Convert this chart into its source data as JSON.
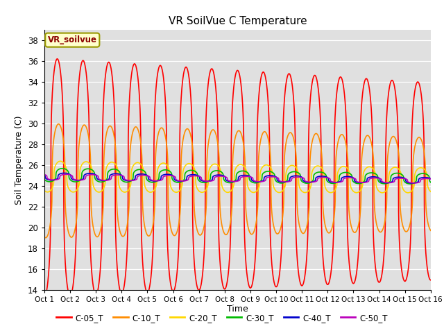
{
  "title": "VR SoilVue C Temperature",
  "xlabel": "Time",
  "ylabel": "Soil Temperature (C)",
  "xlim": [
    0,
    15
  ],
  "ylim": [
    14,
    39
  ],
  "yticks": [
    14,
    16,
    18,
    20,
    22,
    24,
    26,
    28,
    30,
    32,
    34,
    36,
    38
  ],
  "xtick_labels": [
    "Oct 1",
    "Oct 2",
    "Oct 3",
    "Oct 4",
    "Oct 5",
    "Oct 6",
    "Oct 7",
    "Oct 8",
    "Oct 9",
    "Oct 10",
    "Oct 11",
    "Oct 12",
    "Oct 13",
    "Oct 14",
    "Oct 15",
    "Oct 16"
  ],
  "annotation_text": "VR_soilvue",
  "series_names": [
    "C-05_T",
    "C-10_T",
    "C-20_T",
    "C-30_T",
    "C-40_T",
    "C-50_T"
  ],
  "series_colors": [
    "#FF0000",
    "#FF8C00",
    "#FFD700",
    "#00BB00",
    "#0000CC",
    "#BB00BB"
  ],
  "series_lw": [
    1.2,
    1.2,
    1.2,
    1.2,
    1.2,
    1.2
  ],
  "bg_color": "#E0E0E0",
  "fig_bg": "#FFFFFF",
  "n_points": 2000,
  "base_temp": 24.8,
  "base_trend": -0.025,
  "amps_start": [
    11.5,
    5.5,
    1.5,
    0.65,
    0.35,
    0.28
  ],
  "amps_end": [
    9.5,
    4.5,
    1.2,
    0.5,
    0.28,
    0.22
  ],
  "phases": [
    0.0,
    0.05,
    0.12,
    0.2,
    0.28,
    0.35
  ],
  "base_offsets": [
    0.0,
    -0.3,
    0.1,
    0.25,
    0.1,
    0.05
  ],
  "sharpness": 3.0
}
